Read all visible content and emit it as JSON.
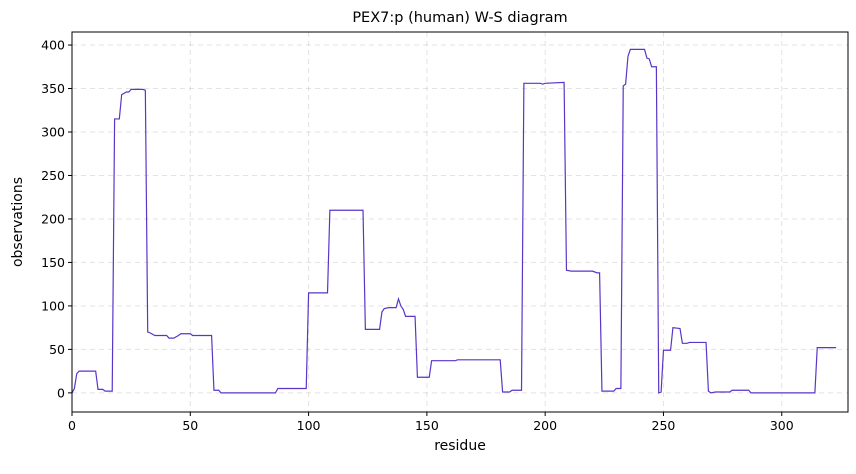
{
  "chart_data": {
    "type": "line",
    "title": "PEX7:p (human) W-S diagram",
    "xlabel": "residue",
    "ylabel": "observations",
    "xlim": [
      0,
      328
    ],
    "ylim": [
      -22,
      415
    ],
    "xticks": [
      0,
      50,
      100,
      150,
      200,
      250,
      300
    ],
    "yticks": [
      0,
      50,
      100,
      150,
      200,
      250,
      300,
      350,
      400
    ],
    "grid": true,
    "line_color": "#5a35c8",
    "series": [
      {
        "x": [
          0,
          1,
          2,
          3,
          4,
          5,
          6,
          10,
          11,
          13,
          14,
          16,
          17,
          18,
          20,
          21,
          23,
          24,
          25,
          27,
          28,
          30,
          31,
          32,
          33,
          35,
          40,
          41,
          43,
          45,
          46,
          50,
          51,
          59,
          60,
          62,
          63,
          86,
          87,
          99,
          100,
          108,
          109,
          123,
          124,
          130,
          131,
          132,
          134,
          137,
          138,
          139,
          140,
          141,
          145,
          146,
          151,
          152,
          162,
          163,
          181,
          182,
          185,
          186,
          190,
          191,
          198,
          199,
          200,
          208,
          209,
          211,
          220,
          222,
          223,
          224,
          225,
          229,
          230,
          232,
          233,
          234,
          235,
          236,
          237,
          242,
          243,
          244,
          245,
          247,
          248,
          249,
          250,
          253,
          254,
          257,
          258,
          260,
          261,
          268,
          269,
          270,
          272,
          278,
          279,
          286,
          287,
          313,
          314,
          315,
          323
        ],
        "y": [
          0,
          5,
          22,
          25,
          25,
          25,
          25,
          25,
          4,
          4,
          2,
          2,
          2,
          315,
          315,
          343,
          346,
          346,
          349,
          349,
          349,
          349,
          348,
          70,
          69,
          66,
          66,
          63,
          63,
          66,
          68,
          68,
          66,
          66,
          3,
          3,
          0,
          0,
          5,
          5,
          115,
          115,
          210,
          210,
          73,
          73,
          93,
          97,
          98,
          98,
          108,
          100,
          96,
          88,
          88,
          18,
          18,
          37,
          37,
          38,
          38,
          1,
          1,
          3,
          3,
          356,
          356,
          355,
          356,
          357,
          141,
          140,
          140,
          138,
          138,
          2,
          2,
          2,
          5,
          5,
          353,
          355,
          387,
          395,
          395,
          395,
          385,
          384,
          375,
          375,
          0,
          1,
          49,
          49,
          75,
          74,
          57,
          57,
          58,
          58,
          2,
          0,
          1,
          1,
          3,
          3,
          0,
          0,
          0,
          52,
          52
        ]
      }
    ]
  }
}
